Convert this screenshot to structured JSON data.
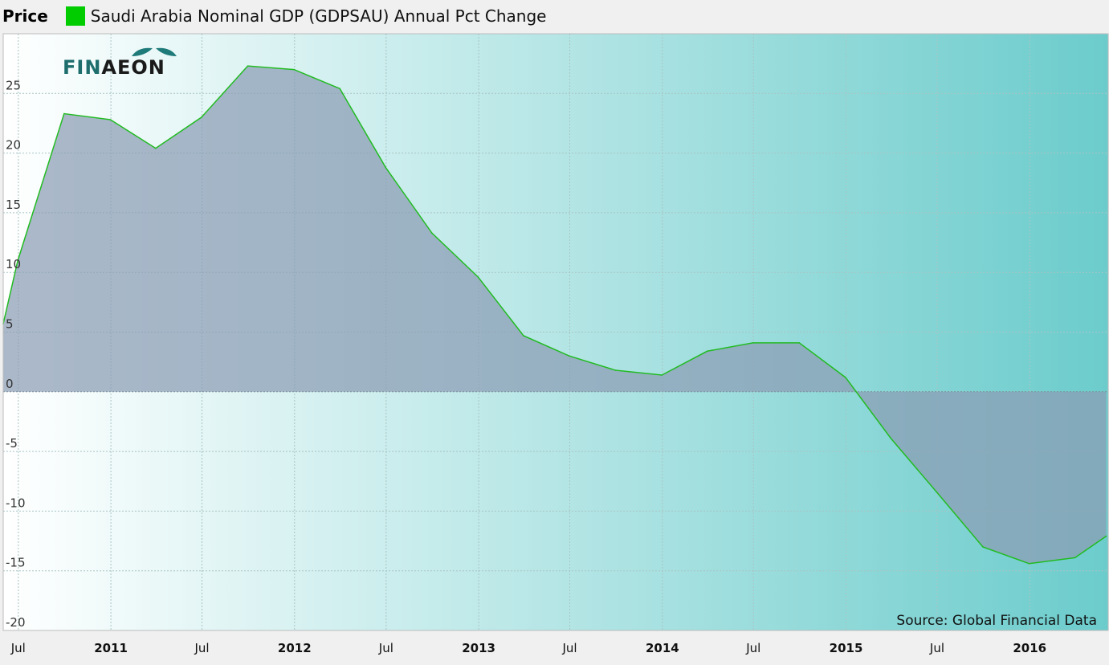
{
  "legend": {
    "title": "Price",
    "series_label": "Saudi Arabia Nominal GDP (GDPSAU) Annual Pct Change",
    "series_color": "#00cc00"
  },
  "logo": {
    "text_a": "FIN",
    "text_b": "AEON"
  },
  "source": "Source: Global Financial Data",
  "chart_data": {
    "type": "area",
    "title": "",
    "xlabel": "",
    "ylabel": "",
    "x_dates": [
      "2010-06-01",
      "2010-06-30",
      "2010-09-30",
      "2010-12-31",
      "2011-03-31",
      "2011-06-30",
      "2011-09-30",
      "2011-12-31",
      "2012-03-31",
      "2012-06-30",
      "2012-09-30",
      "2012-12-31",
      "2013-03-31",
      "2013-06-30",
      "2013-09-30",
      "2013-12-31",
      "2014-03-31",
      "2014-06-30",
      "2014-09-30",
      "2014-12-31",
      "2015-03-31",
      "2015-06-30",
      "2015-09-30",
      "2015-12-31",
      "2016-03-31",
      "2016-06-01"
    ],
    "values": [
      5.7,
      11.0,
      23.3,
      22.8,
      20.4,
      23.0,
      27.3,
      27.0,
      25.4,
      18.8,
      13.3,
      9.6,
      4.7,
      3.0,
      1.8,
      1.4,
      3.4,
      4.1,
      4.1,
      1.2,
      -3.9,
      -8.4,
      -13.0,
      -14.4,
      -13.9,
      -12.1
    ],
    "ylim": [
      -20,
      30
    ],
    "yticks": [
      25,
      20,
      15,
      10,
      5,
      0,
      -5,
      -10,
      -15,
      -20
    ],
    "xticks": [
      {
        "label": "Jul",
        "date": "2010-07-01",
        "bold": false
      },
      {
        "label": "2011",
        "date": "2011-01-01",
        "bold": true
      },
      {
        "label": "Jul",
        "date": "2011-07-01",
        "bold": false
      },
      {
        "label": "2012",
        "date": "2012-01-01",
        "bold": true
      },
      {
        "label": "Jul",
        "date": "2012-07-01",
        "bold": false
      },
      {
        "label": "2013",
        "date": "2013-01-01",
        "bold": true
      },
      {
        "label": "Jul",
        "date": "2013-07-01",
        "bold": false
      },
      {
        "label": "2014",
        "date": "2014-01-01",
        "bold": true
      },
      {
        "label": "Jul",
        "date": "2014-07-01",
        "bold": false
      },
      {
        "label": "2015",
        "date": "2015-01-01",
        "bold": true
      },
      {
        "label": "Jul",
        "date": "2015-07-01",
        "bold": false
      },
      {
        "label": "2016",
        "date": "2016-01-01",
        "bold": true
      }
    ],
    "grid": true,
    "legend_position": "top-left",
    "line_color": "#22bb22",
    "fill_color": "#8a9cb4",
    "background_gradient": [
      "#ffffff",
      "#6ccccc"
    ]
  }
}
